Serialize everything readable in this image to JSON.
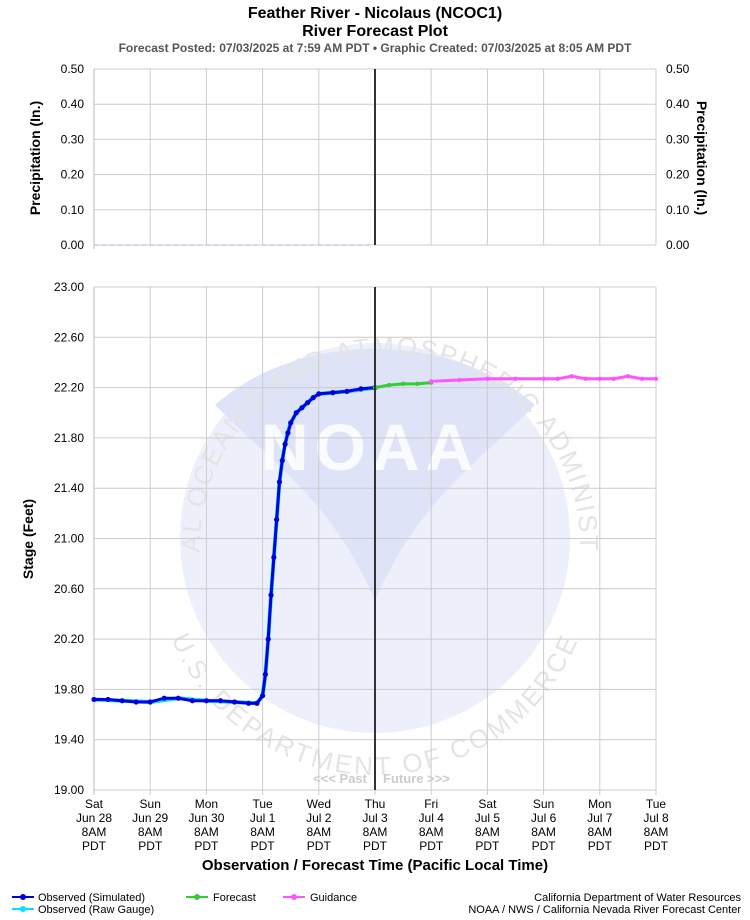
{
  "header": {
    "title": "Feather River - Nicolaus (NCOC1)",
    "subtitle": "River Forecast Plot",
    "posted": "Forecast Posted: 07/03/2025 at 7:59 AM PDT  •  Graphic Created: 07/03/2025 at 8:05 AM PDT"
  },
  "watermark": {
    "arc_top": "NATIONAL OCEANIC AND ATMOSPHERIC ADMINISTRATION",
    "arc_bottom": "U.S. DEPARTMENT OF COMMERCE",
    "logo_text": "NOAA"
  },
  "past_future": {
    "past": "<<< Past",
    "future": "Future >>>"
  },
  "colors": {
    "observed": "#0000dd",
    "raw_gauge": "#00e5ff",
    "forecast": "#33cc33",
    "guidance": "#ff55ff",
    "grid": "#cccccc",
    "now_line": "#333333",
    "precip_series": "#aaaaee"
  },
  "legend": {
    "observed": "Observed (Simulated)",
    "raw_gauge": "Observed (Raw Gauge)",
    "forecast": "Forecast",
    "guidance": "Guidance"
  },
  "credits": {
    "line1": "California Department of Water Resources",
    "line2": "NOAA / NWS / California Nevada River Forecast Center"
  },
  "chart_data": [
    {
      "type": "line",
      "name": "precipitation",
      "ylabel": "Precipitation (In.)",
      "ylabel_right": "Precipitation (In.)",
      "ylim": [
        0,
        0.5
      ],
      "yticks": [
        "0.50",
        "0.40",
        "0.30",
        "0.20",
        "0.10",
        "0.00"
      ],
      "grid": true,
      "x_range_days": [
        0,
        10
      ],
      "now_day": 5,
      "series": [
        {
          "values_x_days": [
            0,
            5
          ],
          "values": [
            0.0,
            0.0
          ]
        }
      ]
    },
    {
      "type": "line",
      "name": "stage",
      "ylabel": "Stage (Feet)",
      "xlabel": "Observation / Forecast Time (Pacific Local Time)",
      "ylim": [
        19.0,
        23.0
      ],
      "yticks": [
        "23.00",
        "22.60",
        "22.20",
        "21.80",
        "21.40",
        "21.00",
        "20.60",
        "20.20",
        "19.80",
        "19.40",
        "19.00"
      ],
      "grid": true,
      "now_day": 5,
      "x_tick_labels": [
        [
          "Sat",
          "Jun 28",
          "8AM",
          "PDT"
        ],
        [
          "Sun",
          "Jun 29",
          "8AM",
          "PDT"
        ],
        [
          "Mon",
          "Jun 30",
          "8AM",
          "PDT"
        ],
        [
          "Tue",
          "Jul 1",
          "8AM",
          "PDT"
        ],
        [
          "Wed",
          "Jul 2",
          "8AM",
          "PDT"
        ],
        [
          "Thu",
          "Jul 3",
          "8AM",
          "PDT"
        ],
        [
          "Fri",
          "Jul 4",
          "8AM",
          "PDT"
        ],
        [
          "Sat",
          "Jul 5",
          "8AM",
          "PDT"
        ],
        [
          "Sun",
          "Jul 6",
          "8AM",
          "PDT"
        ],
        [
          "Mon",
          "Jul 7",
          "8AM",
          "PDT"
        ],
        [
          "Tue",
          "Jul 8",
          "8AM",
          "PDT"
        ]
      ],
      "series": [
        {
          "name": "Observed (Simulated)",
          "x_days": [
            0,
            0.25,
            0.5,
            0.75,
            1.0,
            1.25,
            1.5,
            1.75,
            2.0,
            2.25,
            2.5,
            2.75,
            2.9,
            3.0,
            3.05,
            3.1,
            3.15,
            3.2,
            3.25,
            3.3,
            3.35,
            3.4,
            3.45,
            3.5,
            3.6,
            3.7,
            3.8,
            3.9,
            4.0,
            4.25,
            4.5,
            4.75,
            5.0
          ],
          "values": [
            19.72,
            19.72,
            19.71,
            19.7,
            19.7,
            19.73,
            19.73,
            19.71,
            19.71,
            19.71,
            19.7,
            19.69,
            19.69,
            19.75,
            19.92,
            20.2,
            20.55,
            20.85,
            21.15,
            21.45,
            21.62,
            21.75,
            21.84,
            21.92,
            22.0,
            22.04,
            22.08,
            22.12,
            22.15,
            22.16,
            22.17,
            22.19,
            22.2
          ]
        },
        {
          "name": "Observed (Raw Gauge)",
          "x_days": [
            0,
            0.5,
            1.0,
            1.5,
            2.0,
            2.5,
            2.9,
            3.0,
            3.05,
            3.1,
            3.15,
            3.2,
            3.25,
            3.3,
            3.35,
            3.4,
            3.45,
            3.5,
            3.6,
            3.7,
            3.8,
            3.9,
            4.0,
            4.5,
            5.0
          ],
          "values": [
            19.72,
            19.71,
            19.7,
            19.73,
            19.71,
            19.7,
            19.69,
            19.75,
            19.92,
            20.2,
            20.55,
            20.85,
            21.15,
            21.45,
            21.62,
            21.75,
            21.84,
            21.92,
            22.0,
            22.04,
            22.08,
            22.12,
            22.15,
            22.17,
            22.2
          ]
        },
        {
          "name": "Forecast",
          "x_days": [
            5.0,
            5.25,
            5.5,
            5.75,
            6.0
          ],
          "values": [
            22.2,
            22.22,
            22.23,
            22.23,
            22.24
          ]
        },
        {
          "name": "Guidance",
          "x_days": [
            6.0,
            6.5,
            7.0,
            7.5,
            8.0,
            8.25,
            8.5,
            8.75,
            9.0,
            9.25,
            9.5,
            9.75,
            10.0
          ],
          "values": [
            22.25,
            22.26,
            22.27,
            22.27,
            22.27,
            22.27,
            22.29,
            22.27,
            22.27,
            22.27,
            22.29,
            22.27,
            22.27
          ]
        }
      ]
    }
  ]
}
